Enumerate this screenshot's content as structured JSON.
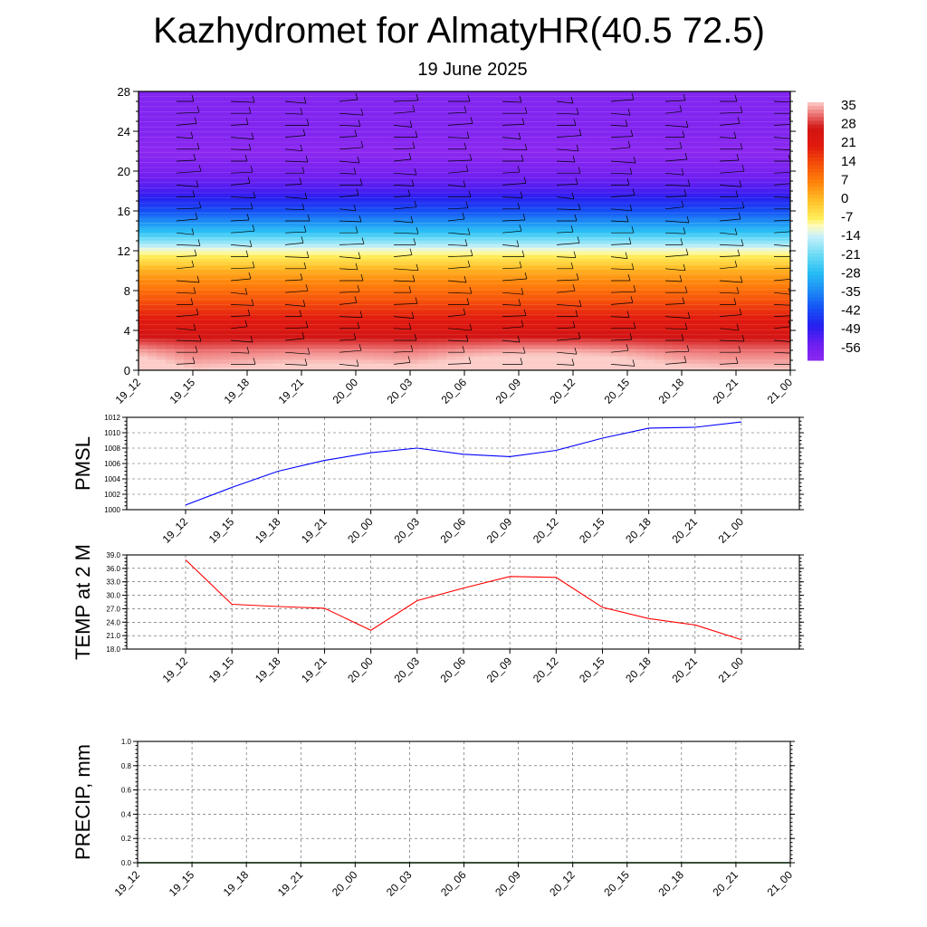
{
  "title": "Kazhydromet for AlmatyHR(40.5 72.5)",
  "subtitle": "19 June 2025",
  "time_labels": [
    "19_12",
    "19_15",
    "19_18",
    "19_21",
    "20_00",
    "20_03",
    "20_06",
    "20_09",
    "20_12",
    "20_15",
    "20_18",
    "20_21",
    "21_00"
  ],
  "chart_data": [
    {
      "type": "heatmap",
      "title": "",
      "xlabel": "",
      "ylabel": "",
      "ylim": [
        0,
        28
      ],
      "y_ticks": [
        0,
        4,
        8,
        12,
        16,
        20,
        24,
        28
      ],
      "colorbar_labels": [
        "35",
        "28",
        "21",
        "14",
        "7",
        "0",
        "-7",
        "-14",
        "-21",
        "-28",
        "-35",
        "-42",
        "-49",
        "-56"
      ],
      "colorbar_range": [
        -62,
        38
      ],
      "levels_km": [
        0,
        2,
        4,
        6,
        8,
        10,
        12,
        14,
        16,
        18,
        20,
        22,
        24,
        26,
        28
      ],
      "temperature_profile": [
        38,
        33,
        25,
        18,
        10,
        2,
        -10,
        -28,
        -42,
        -52,
        -58,
        -62,
        -60,
        -60,
        -60
      ],
      "surface_anomaly": [
        5,
        0,
        1,
        2,
        2,
        1,
        4,
        6,
        6,
        4,
        1,
        0,
        0
      ],
      "grid": false
    },
    {
      "type": "line",
      "title": "",
      "ylabel": "PMSL",
      "ylim": [
        1000,
        1012
      ],
      "y_ticks": [
        "1000",
        "1002",
        "1004",
        "1006",
        "1008",
        "1010",
        "1012"
      ],
      "values": [
        1000.6,
        1002.9,
        1005.0,
        1006.4,
        1007.4,
        1008.0,
        1007.2,
        1006.9,
        1007.7,
        1009.3,
        1010.6,
        1010.7,
        1011.4
      ],
      "color": "#0000ff",
      "grid": true
    },
    {
      "type": "line",
      "title": "",
      "ylabel": "TEMP at 2 M",
      "ylim": [
        18,
        39
      ],
      "y_ticks": [
        "18.0",
        "21.0",
        "24.0",
        "27.0",
        "30.0",
        "33.0",
        "36.0",
        "39.0"
      ],
      "values": [
        37.9,
        28.0,
        27.5,
        27.1,
        22.2,
        28.8,
        31.6,
        34.2,
        34.0,
        27.3,
        24.8,
        23.4,
        20.1
      ],
      "color": "#ff0000",
      "grid": true
    },
    {
      "type": "line",
      "title": "",
      "ylabel": "PRECIP, mm",
      "ylim": [
        0,
        1
      ],
      "y_ticks": [
        "0.0",
        "0.2",
        "0.4",
        "0.6",
        "0.8",
        "1.0"
      ],
      "values": [
        0,
        0,
        0,
        0,
        0,
        0,
        0,
        0,
        0,
        0,
        0,
        0,
        0
      ],
      "color": "#006400",
      "grid": true
    }
  ]
}
